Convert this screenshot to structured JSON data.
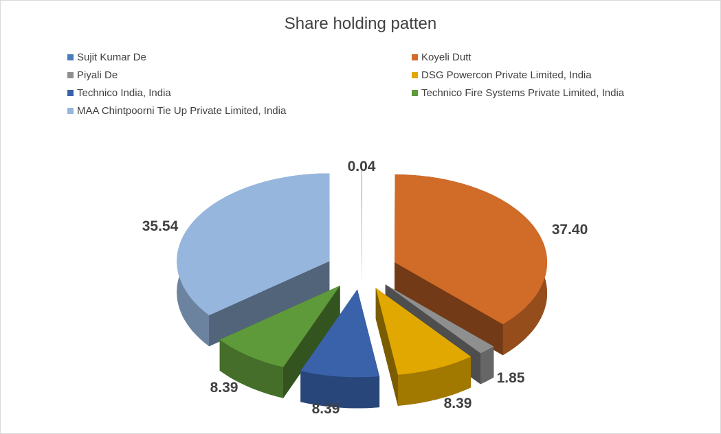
{
  "chart_data": {
    "type": "pie",
    "style": "3d-exploded",
    "title": "Share holding patten",
    "legend_position": "top",
    "categories": [
      "Sujit Kumar De",
      "Koyeli Dutt",
      "Piyali De",
      "DSG Powercon Private Limited, India",
      "Technico India, India",
      "Technico Fire Systems Private Limited, India",
      "MAA Chintpoorni Tie Up Private Limited, India"
    ],
    "values": [
      0.04,
      37.4,
      1.85,
      8.39,
      8.39,
      8.39,
      35.54
    ],
    "labels": [
      "0.04",
      "37.40",
      "1.85",
      "8.39",
      "8.39",
      "8.39",
      "35.54"
    ],
    "colors": [
      "#4a7ebb",
      "#d06b28",
      "#8f8f8f",
      "#e0a800",
      "#3a62aa",
      "#5f9a3a",
      "#96b6de"
    ]
  }
}
